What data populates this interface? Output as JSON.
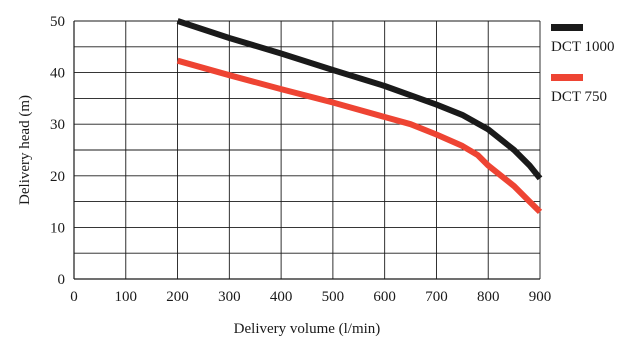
{
  "chart_data": {
    "type": "line",
    "xlabel": "Delivery volume (l/min)",
    "ylabel": "Delivery head (m)",
    "xlim": [
      0,
      900
    ],
    "ylim": [
      0,
      50
    ],
    "x_ticks": [
      0,
      100,
      200,
      300,
      400,
      500,
      600,
      700,
      800,
      900
    ],
    "y_ticks": [
      0,
      10,
      20,
      30,
      40,
      50
    ],
    "grid": true,
    "legend_position": "right",
    "series": [
      {
        "name": "DCT 1000",
        "color": "#1a1a1a",
        "points": [
          [
            200,
            50
          ],
          [
            300,
            46.7
          ],
          [
            400,
            43.7
          ],
          [
            500,
            40.5
          ],
          [
            600,
            37.4
          ],
          [
            700,
            33.8
          ],
          [
            750,
            31.8
          ],
          [
            800,
            29
          ],
          [
            850,
            25
          ],
          [
            880,
            22
          ],
          [
            900,
            19.5
          ]
        ]
      },
      {
        "name": "DCT 750",
        "color": "#ee4433",
        "points": [
          [
            200,
            42.3
          ],
          [
            300,
            39.5
          ],
          [
            400,
            36.8
          ],
          [
            500,
            34.2
          ],
          [
            600,
            31.4
          ],
          [
            650,
            30
          ],
          [
            700,
            28
          ],
          [
            750,
            25.8
          ],
          [
            780,
            24
          ],
          [
            800,
            22
          ],
          [
            850,
            18
          ],
          [
            880,
            15
          ],
          [
            900,
            13
          ]
        ]
      }
    ]
  }
}
